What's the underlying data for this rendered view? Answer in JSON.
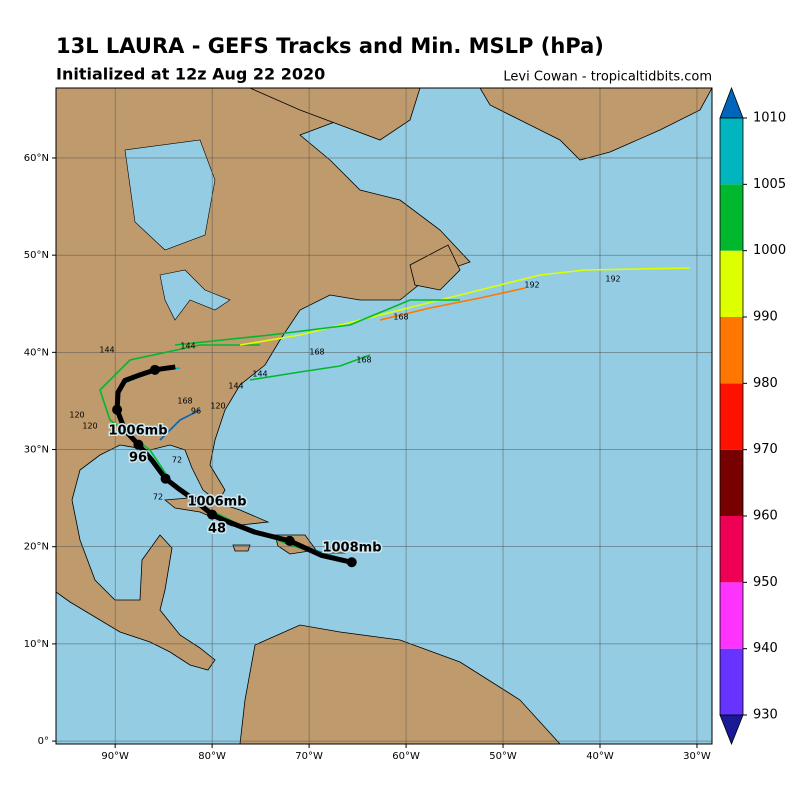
{
  "header": {
    "title": "13L LAURA - GEFS Tracks and Min. MSLP (hPa)",
    "subtitle": "Initialized at 12z Aug 22 2020",
    "credit": "Levi Cowan - tropicaltidbits.com"
  },
  "map": {
    "lon_range": [
      -96.1,
      -28.45
    ],
    "lat_range": [
      -0.3,
      67.2
    ],
    "lon_ticks": [
      {
        "value": -90,
        "label": "90°W"
      },
      {
        "value": -80,
        "label": "80°W"
      },
      {
        "value": -70,
        "label": "70°W"
      },
      {
        "value": -60,
        "label": "60°W"
      },
      {
        "value": -50,
        "label": "50°W"
      },
      {
        "value": -40,
        "label": "40°W"
      },
      {
        "value": -30,
        "label": "30°W"
      }
    ],
    "lat_ticks": [
      {
        "value": 0,
        "label": "0°"
      },
      {
        "value": 10,
        "label": "10°N"
      },
      {
        "value": 20,
        "label": "20°N"
      },
      {
        "value": 30,
        "label": "30°N"
      },
      {
        "value": 40,
        "label": "40°N"
      },
      {
        "value": 50,
        "label": "50°N"
      },
      {
        "value": 60,
        "label": "60°N"
      }
    ],
    "mean_track": {
      "lon": [
        -65.6,
        -68.7,
        -72.0,
        -75.6,
        -78.7,
        -80.0,
        -81.8,
        -83.5,
        -84.8,
        -86.2,
        -87.6,
        -89.0,
        -89.8,
        -89.7,
        -89.0,
        -87.4,
        -85.9,
        -83.8
      ],
      "lat": [
        18.4,
        19.1,
        20.6,
        21.5,
        22.7,
        23.3,
        24.8,
        26.0,
        27.0,
        28.9,
        30.5,
        32.0,
        34.1,
        35.9,
        37.1,
        37.7,
        38.2,
        38.5
      ]
    },
    "annotations": [
      "1008mb",
      "1006mb",
      "48",
      "1006mb",
      "96"
    ],
    "track_labels": [
      "192",
      "192",
      "168",
      "168",
      "168",
      "168",
      "144",
      "144",
      "144",
      "144",
      "120",
      "120",
      "120",
      "96",
      "72",
      "72"
    ]
  },
  "colorbar": {
    "ticks": [
      930,
      940,
      950,
      960,
      970,
      980,
      990,
      1000,
      1005,
      1010
    ],
    "colors": [
      "#6633ff",
      "#ff33ff",
      "#ee0055",
      "#770000",
      "#ff1100",
      "#ff7700",
      "#ddff00",
      "#00b82e",
      "#00b5c0"
    ],
    "below_color": "#1a1a99",
    "above_color": "#0066bb"
  }
}
